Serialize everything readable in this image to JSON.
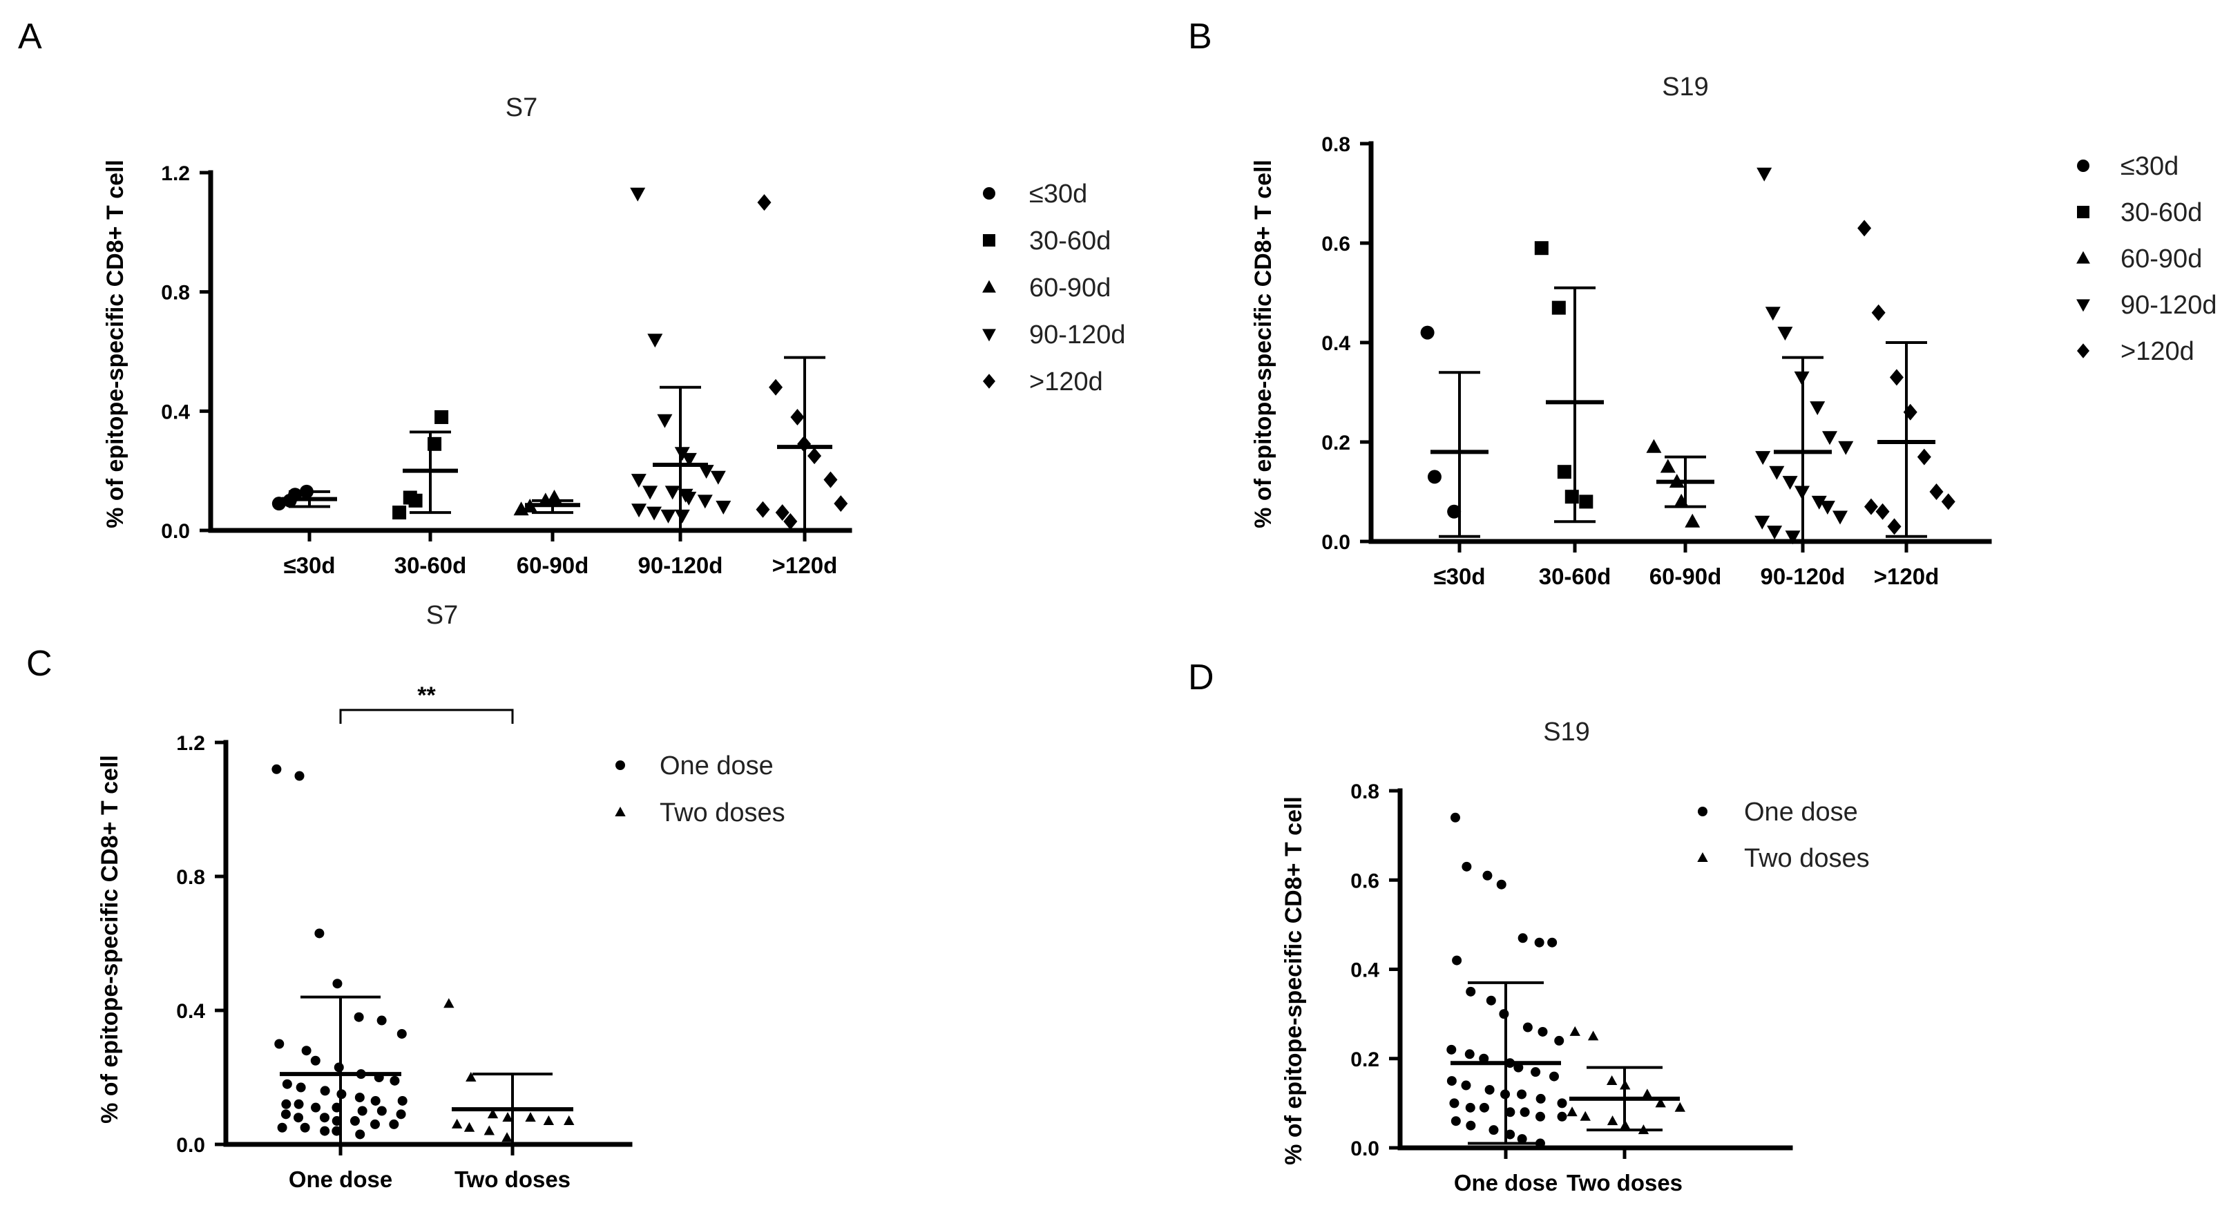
{
  "panel_letters": {
    "A": "A",
    "B": "B",
    "C": "C",
    "D": "D"
  },
  "chart_data": [
    {
      "id": "A",
      "type": "scatter",
      "title": "S7",
      "ylabel": "% of epitope-specific CD8+ T cell",
      "xlabel": "",
      "ylim": [
        0,
        1.2
      ],
      "yticks": [
        0.0,
        0.4,
        0.8,
        1.2
      ],
      "ytick_labels": [
        "0.0",
        "0.4",
        "0.8",
        "1.2"
      ],
      "categories": [
        "≤30d",
        "30-60d",
        "60-90d",
        "90-120d",
        ">120d"
      ],
      "legend": [
        "≤30d",
        "30-60d",
        "60-90d",
        "90-120d",
        ">120d"
      ],
      "series": [
        {
          "name": "≤30d",
          "marker": "circle",
          "values": [
            0.09,
            0.1,
            0.12,
            0.13
          ],
          "mean": 0.105,
          "sd_low": 0.08,
          "sd_high": 0.13
        },
        {
          "name": "30-60d",
          "marker": "square",
          "values": [
            0.06,
            0.11,
            0.1,
            0.29,
            0.38
          ],
          "mean": 0.2,
          "sd_low": 0.06,
          "sd_high": 0.33
        },
        {
          "name": "60-90d",
          "marker": "triangle-up",
          "values": [
            0.07,
            0.08,
            0.1,
            0.11
          ],
          "mean": 0.085,
          "sd_low": 0.06,
          "sd_high": 0.1
        },
        {
          "name": "90-120d",
          "marker": "triangle-down",
          "values": [
            1.13,
            0.64,
            0.37,
            0.26,
            0.24,
            0.2,
            0.18,
            0.17,
            0.13,
            0.13,
            0.12,
            0.11,
            0.1,
            0.08,
            0.07,
            0.06,
            0.05,
            0.05
          ],
          "mean": 0.22,
          "sd_low": 0.0,
          "sd_high": 0.48
        },
        {
          "name": ">120d",
          "marker": "diamond",
          "values": [
            1.1,
            0.48,
            0.38,
            0.29,
            0.25,
            0.17,
            0.09,
            0.07,
            0.06,
            0.03
          ],
          "mean": 0.28,
          "sd_low": 0.0,
          "sd_high": 0.58
        }
      ]
    },
    {
      "id": "B",
      "type": "scatter",
      "title": "S19",
      "ylabel": "% of epitope-specific CD8+ T cell",
      "xlabel": "",
      "ylim": [
        0,
        0.8
      ],
      "yticks": [
        0.0,
        0.2,
        0.4,
        0.6,
        0.8
      ],
      "ytick_labels": [
        "0.0",
        "0.2",
        "0.4",
        "0.6",
        "0.8"
      ],
      "categories": [
        "≤30d",
        "30-60d",
        "60-90d",
        "90-120d",
        ">120d"
      ],
      "legend": [
        "≤30d",
        "30-60d",
        "60-90d",
        "90-120d",
        ">120d"
      ],
      "series": [
        {
          "name": "≤30d",
          "marker": "circle",
          "values": [
            0.42,
            0.13,
            0.06
          ],
          "mean": 0.18,
          "sd_low": 0.01,
          "sd_high": 0.34
        },
        {
          "name": "30-60d",
          "marker": "square",
          "values": [
            0.59,
            0.47,
            0.14,
            0.09,
            0.08
          ],
          "mean": 0.28,
          "sd_low": 0.04,
          "sd_high": 0.51
        },
        {
          "name": "60-90d",
          "marker": "triangle-up",
          "values": [
            0.19,
            0.15,
            0.12,
            0.08,
            0.04
          ],
          "mean": 0.12,
          "sd_low": 0.07,
          "sd_high": 0.17
        },
        {
          "name": "90-120d",
          "marker": "triangle-down",
          "values": [
            0.74,
            0.46,
            0.42,
            0.33,
            0.27,
            0.21,
            0.19,
            0.17,
            0.14,
            0.12,
            0.1,
            0.08,
            0.07,
            0.05,
            0.04,
            0.02,
            0.01
          ],
          "mean": 0.18,
          "sd_low": 0.0,
          "sd_high": 0.37
        },
        {
          "name": ">120d",
          "marker": "diamond",
          "values": [
            0.63,
            0.46,
            0.33,
            0.26,
            0.17,
            0.1,
            0.08,
            0.07,
            0.06,
            0.03
          ],
          "mean": 0.2,
          "sd_low": 0.01,
          "sd_high": 0.4
        }
      ]
    },
    {
      "id": "C",
      "type": "scatter",
      "title": "S7",
      "ylabel": "% of epitope-specific CD8+ T cell",
      "xlabel": "",
      "ylim": [
        0,
        1.2
      ],
      "yticks": [
        0.0,
        0.4,
        0.8,
        1.2
      ],
      "ytick_labels": [
        "0.0",
        "0.4",
        "0.8",
        "1.2"
      ],
      "categories": [
        "One dose",
        "Two doses"
      ],
      "legend": [
        "One dose",
        "Two doses"
      ],
      "significance": {
        "label": "**",
        "between": [
          0,
          1
        ]
      },
      "series": [
        {
          "name": "One dose",
          "marker": "circle",
          "values": [
            1.12,
            1.1,
            0.63,
            0.48,
            0.38,
            0.37,
            0.33,
            0.3,
            0.28,
            0.25,
            0.23,
            0.21,
            0.2,
            0.19,
            0.18,
            0.17,
            0.16,
            0.15,
            0.14,
            0.13,
            0.13,
            0.12,
            0.12,
            0.11,
            0.11,
            0.1,
            0.1,
            0.09,
            0.09,
            0.08,
            0.08,
            0.07,
            0.07,
            0.06,
            0.06,
            0.05,
            0.05,
            0.04,
            0.04,
            0.03
          ],
          "mean": 0.21,
          "sd_low": 0.0,
          "sd_high": 0.44
        },
        {
          "name": "Two doses",
          "marker": "triangle-up",
          "values": [
            0.42,
            0.2,
            0.09,
            0.08,
            0.08,
            0.07,
            0.07,
            0.06,
            0.05,
            0.04,
            0.02
          ],
          "mean": 0.105,
          "sd_low": 0.0,
          "sd_high": 0.21
        }
      ]
    },
    {
      "id": "D",
      "type": "scatter",
      "title": "S19",
      "ylabel": "% of epitope-specific CD8+ T cell",
      "xlabel": "",
      "ylim": [
        0,
        0.8
      ],
      "yticks": [
        0.0,
        0.2,
        0.4,
        0.6,
        0.8
      ],
      "ytick_labels": [
        "0.0",
        "0.2",
        "0.4",
        "0.6",
        "0.8"
      ],
      "categories": [
        "One dose",
        "Two doses"
      ],
      "legend": [
        "One dose",
        "Two doses"
      ],
      "series": [
        {
          "name": "One dose",
          "marker": "circle",
          "values": [
            0.74,
            0.63,
            0.61,
            0.59,
            0.47,
            0.46,
            0.46,
            0.42,
            0.35,
            0.33,
            0.3,
            0.27,
            0.26,
            0.24,
            0.22,
            0.21,
            0.2,
            0.19,
            0.18,
            0.17,
            0.16,
            0.15,
            0.14,
            0.13,
            0.12,
            0.12,
            0.11,
            0.1,
            0.1,
            0.09,
            0.09,
            0.08,
            0.08,
            0.07,
            0.07,
            0.06,
            0.05,
            0.04,
            0.03,
            0.02,
            0.01
          ],
          "mean": 0.19,
          "sd_low": 0.01,
          "sd_high": 0.37
        },
        {
          "name": "Two doses",
          "marker": "triangle-up",
          "values": [
            0.26,
            0.25,
            0.15,
            0.14,
            0.12,
            0.1,
            0.09,
            0.08,
            0.07,
            0.06,
            0.05,
            0.04
          ],
          "mean": 0.11,
          "sd_low": 0.04,
          "sd_high": 0.18
        }
      ]
    }
  ]
}
